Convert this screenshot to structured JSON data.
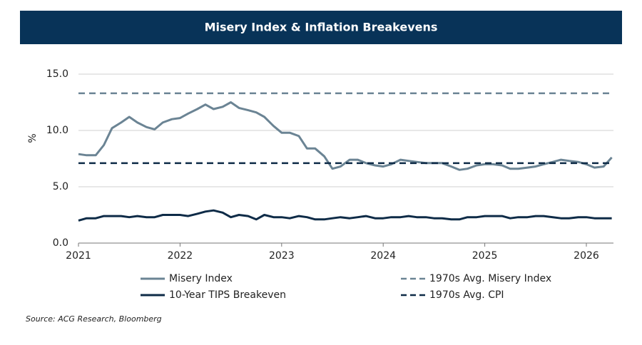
{
  "chart_data": {
    "type": "line",
    "title": "Misery Index & Inflation Breakevens",
    "y_label": "%",
    "source": "Source: ACG Research, Bloomberg",
    "x": [
      2021.0,
      2021.08,
      2021.17,
      2021.25,
      2021.33,
      2021.42,
      2021.5,
      2021.58,
      2021.67,
      2021.75,
      2021.83,
      2021.92,
      2022.0,
      2022.08,
      2022.17,
      2022.25,
      2022.33,
      2022.42,
      2022.5,
      2022.58,
      2022.67,
      2022.75,
      2022.83,
      2022.92,
      2023.0,
      2023.08,
      2023.17,
      2023.25,
      2023.33,
      2023.42,
      2023.5,
      2023.58,
      2023.67,
      2023.75,
      2023.83,
      2023.92,
      2024.0,
      2024.08,
      2024.17,
      2024.25,
      2024.33,
      2024.42,
      2024.5,
      2024.58,
      2024.67,
      2024.75,
      2024.83,
      2024.92,
      2025.0,
      2025.08,
      2025.17,
      2025.25,
      2025.33,
      2025.42,
      2025.5,
      2025.58,
      2025.67,
      2025.75,
      2025.83,
      2025.92,
      2026.0,
      2026.08,
      2026.17,
      2026.25
    ],
    "series": [
      {
        "name": "Misery Index",
        "color": "#6b8494",
        "values": [
          7.9,
          7.8,
          7.8,
          8.7,
          10.2,
          10.7,
          11.2,
          10.7,
          10.3,
          10.1,
          10.7,
          11.0,
          11.1,
          11.5,
          11.9,
          12.3,
          11.9,
          12.1,
          12.5,
          12.0,
          11.8,
          11.6,
          11.2,
          10.4,
          9.8,
          9.8,
          9.5,
          8.4,
          8.4,
          7.7,
          6.6,
          6.8,
          7.4,
          7.4,
          7.1,
          6.9,
          6.8,
          7.0,
          7.4,
          7.3,
          7.2,
          7.1,
          7.1,
          7.1,
          6.8,
          6.5,
          6.6,
          6.9,
          7.0,
          7.0,
          6.9,
          6.6,
          6.6,
          6.7,
          6.8,
          7.0,
          7.2,
          7.4,
          7.3,
          7.2,
          7.0,
          6.7,
          6.8,
          7.6
        ]
      },
      {
        "name": "1970s Avg. Misery Index",
        "color": "#6b8494",
        "dashed": true,
        "hline": 13.3
      },
      {
        "name": "10-Year TIPS Breakeven",
        "color": "#0e2b47",
        "values": [
          2.0,
          2.2,
          2.2,
          2.4,
          2.4,
          2.4,
          2.3,
          2.4,
          2.3,
          2.3,
          2.5,
          2.5,
          2.5,
          2.4,
          2.6,
          2.8,
          2.9,
          2.7,
          2.3,
          2.5,
          2.4,
          2.1,
          2.5,
          2.3,
          2.3,
          2.2,
          2.4,
          2.3,
          2.1,
          2.1,
          2.2,
          2.3,
          2.2,
          2.3,
          2.4,
          2.2,
          2.2,
          2.3,
          2.3,
          2.4,
          2.3,
          2.3,
          2.2,
          2.2,
          2.1,
          2.1,
          2.3,
          2.3,
          2.4,
          2.4,
          2.4,
          2.2,
          2.3,
          2.3,
          2.4,
          2.4,
          2.3,
          2.2,
          2.2,
          2.3,
          2.3,
          2.2,
          2.2,
          2.2
        ]
      },
      {
        "name": "1970s Avg. CPI",
        "color": "#0e2b47",
        "dashed": true,
        "hline": 7.1
      }
    ],
    "xlim": [
      2021,
      2026.25
    ],
    "xticks": [
      2021,
      2022,
      2023,
      2024,
      2025,
      2026
    ],
    "ylim": [
      0,
      17
    ],
    "yticks": [
      {
        "value": 0,
        "label": "0.0"
      },
      {
        "value": 5,
        "label": "5.0"
      },
      {
        "value": 10,
        "label": "10.0"
      },
      {
        "value": 15,
        "label": "15.0"
      }
    ],
    "grid": true
  }
}
